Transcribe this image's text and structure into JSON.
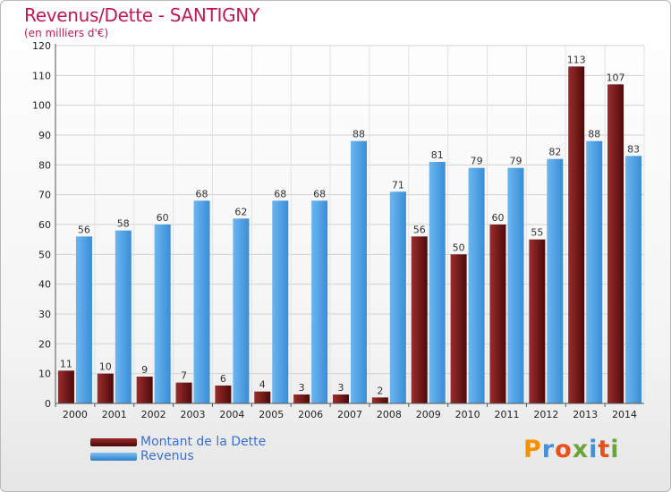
{
  "chart_data": {
    "type": "bar",
    "title": "Revenus/Dette - SANTIGNY",
    "subtitle": "(en milliers d'€)",
    "categories": [
      "2000",
      "2001",
      "2002",
      "2003",
      "2004",
      "2005",
      "2006",
      "2007",
      "2008",
      "2009",
      "2010",
      "2011",
      "2012",
      "2013",
      "2014"
    ],
    "series": [
      {
        "name": "Montant de la Dette",
        "color": "#7a1a1a",
        "values": [
          11,
          10,
          9,
          7,
          6,
          4,
          3,
          3,
          2,
          56,
          50,
          60,
          55,
          113,
          107
        ]
      },
      {
        "name": "Revenus",
        "color": "#4fa3e6",
        "values": [
          56,
          58,
          60,
          68,
          62,
          68,
          68,
          88,
          71,
          81,
          79,
          79,
          82,
          88,
          83
        ]
      }
    ],
    "ylim": [
      0,
      120
    ],
    "yticks": [
      0,
      10,
      20,
      30,
      40,
      50,
      60,
      70,
      80,
      90,
      100,
      110,
      120
    ],
    "grid": true,
    "legend": "bottom-left"
  },
  "logo": {
    "text": "Proxiti",
    "colors": [
      "#f39200",
      "#4a8fd6",
      "#e8501c",
      "#6aa43b",
      "#4a8fd6",
      "#e8501c",
      "#6aa43b"
    ]
  }
}
